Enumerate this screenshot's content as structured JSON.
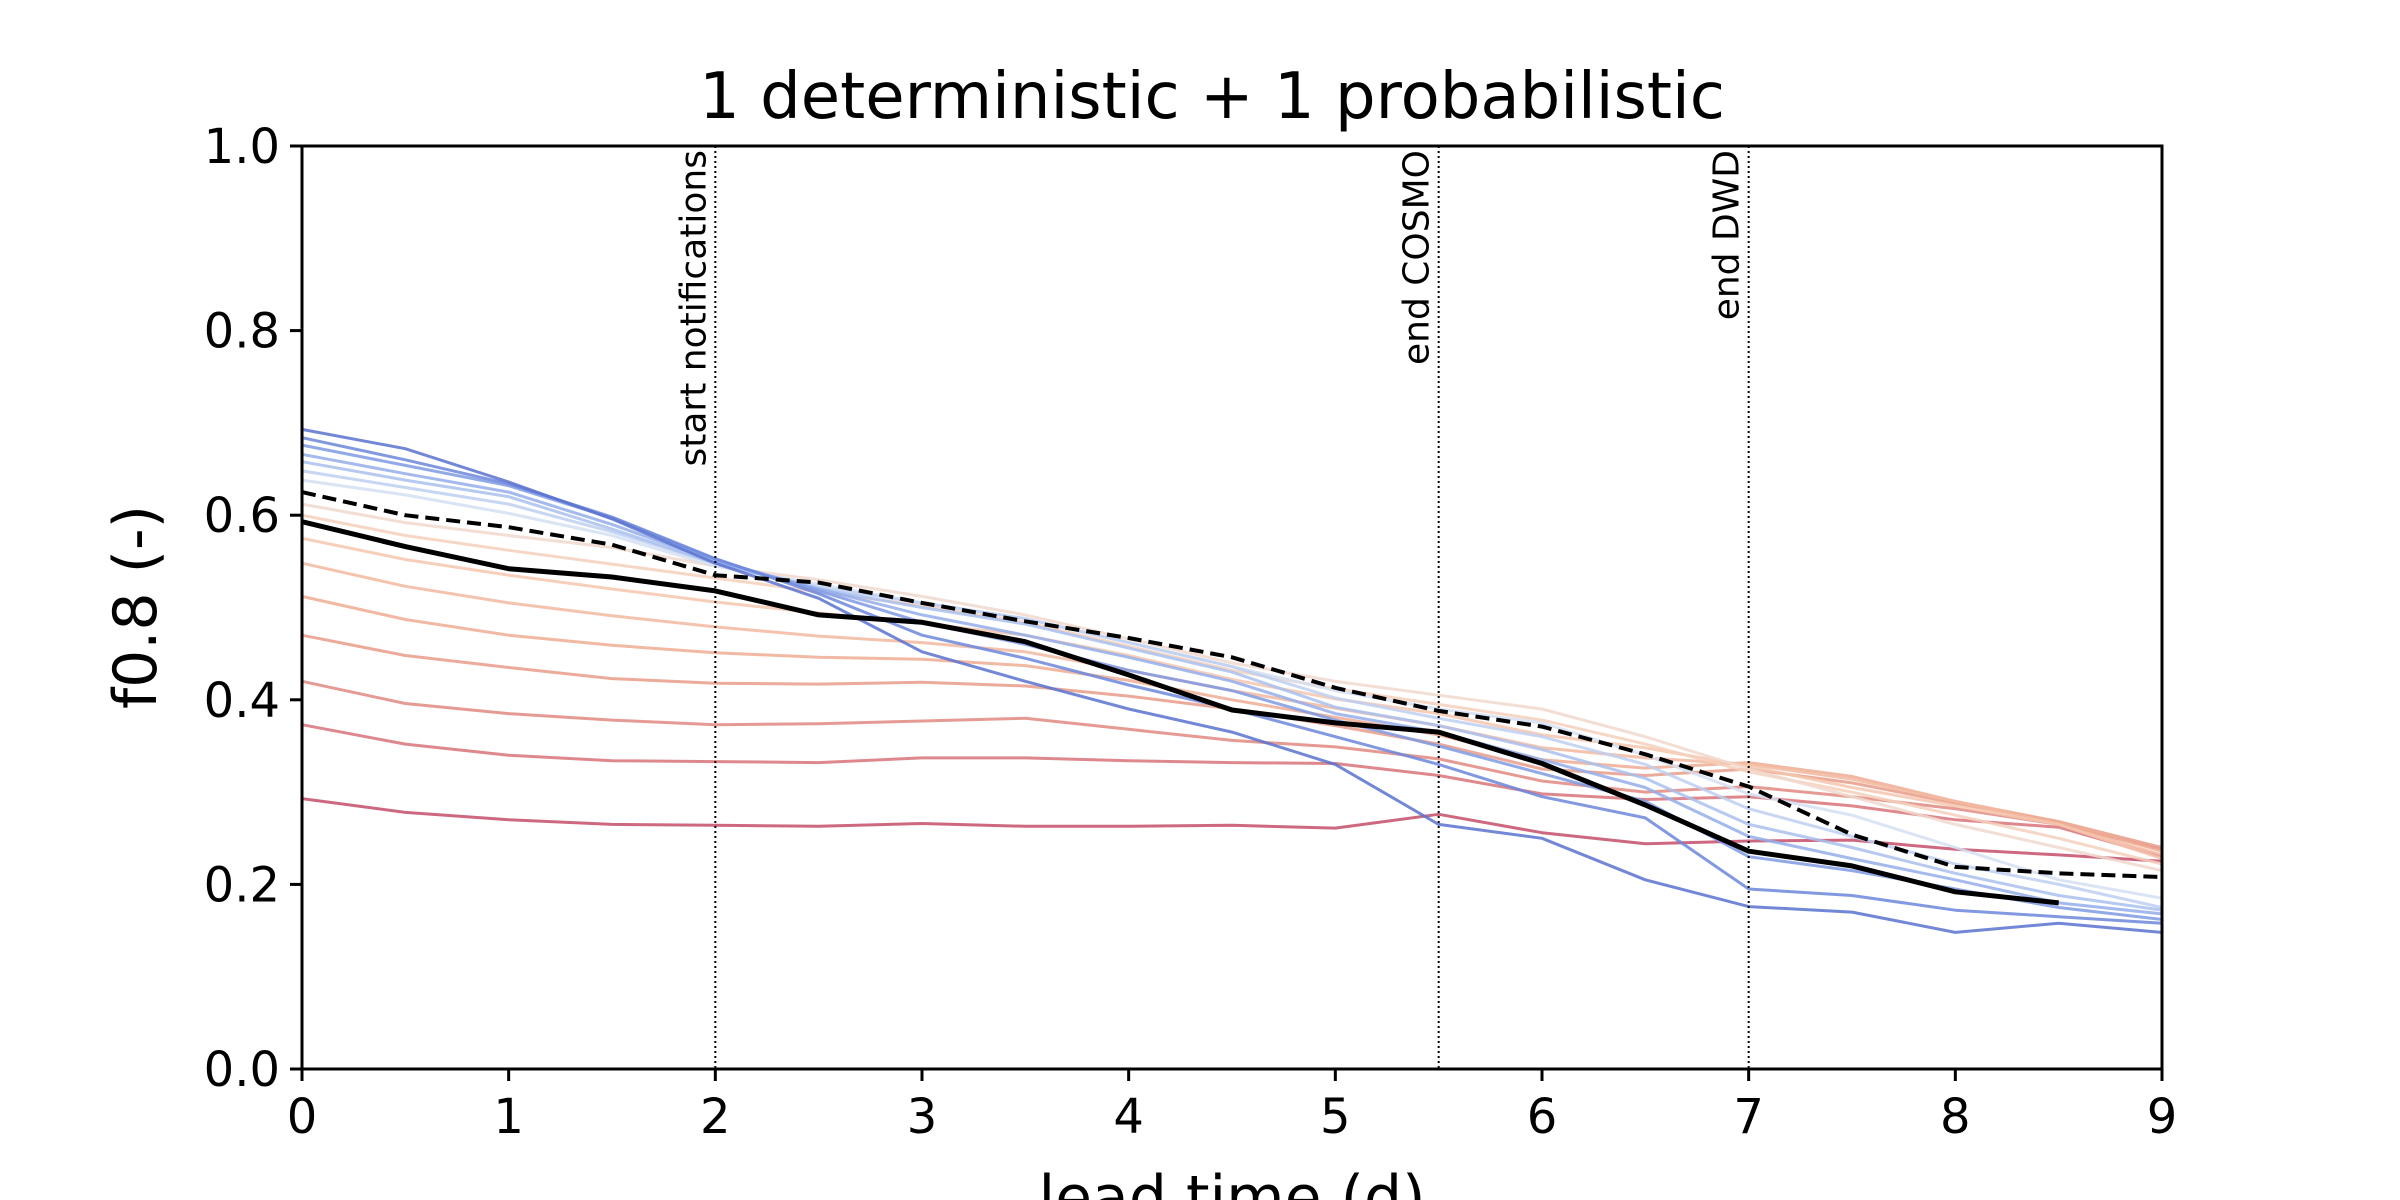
{
  "chart_data": {
    "type": "line",
    "title": "1 deterministic + 1 probabilistic",
    "xlabel": "lead time (d)",
    "ylabel": "f0.8 (-)",
    "xlim": [
      0,
      9
    ],
    "ylim": [
      0,
      1
    ],
    "x_ticks": [
      "0",
      "1",
      "2",
      "3",
      "4",
      "5",
      "6",
      "7",
      "8",
      "9"
    ],
    "y_ticks": [
      "0.0",
      "0.2",
      "0.4",
      "0.6",
      "0.8",
      "1.0"
    ],
    "x_tick_values": [
      0,
      1,
      2,
      3,
      4,
      5,
      6,
      7,
      8,
      9
    ],
    "y_tick_values": [
      0,
      0.2,
      0.4,
      0.6,
      0.8,
      1.0
    ],
    "grid": false,
    "vlines": [
      {
        "x": 2,
        "label": "start notifications"
      },
      {
        "x": 5.5,
        "label": "end COSMO"
      },
      {
        "x": 7,
        "label": "end DWD"
      }
    ],
    "x": [
      0,
      0.5,
      1,
      1.5,
      2,
      2.5,
      3,
      3.5,
      4,
      4.5,
      5,
      5.5,
      6,
      6.5,
      7,
      7.5,
      8,
      8.5,
      9
    ],
    "series": [
      {
        "color": "#c44e6a",
        "style": "solid",
        "values": [
          0.293,
          0.278,
          0.27,
          0.265,
          0.264,
          0.263,
          0.266,
          0.263,
          0.263,
          0.264,
          0.261,
          0.276,
          0.256,
          0.244,
          0.247,
          0.248,
          0.238,
          0.232,
          0.225
        ]
      },
      {
        "color": "#d8737a",
        "style": "solid",
        "values": [
          0.373,
          0.352,
          0.34,
          0.334,
          0.333,
          0.332,
          0.337,
          0.337,
          0.334,
          0.332,
          0.331,
          0.318,
          0.298,
          0.292,
          0.295,
          0.285,
          0.27,
          0.262,
          0.23
        ]
      },
      {
        "color": "#e08a80",
        "style": "solid",
        "values": [
          0.42,
          0.396,
          0.385,
          0.378,
          0.373,
          0.374,
          0.377,
          0.38,
          0.368,
          0.356,
          0.349,
          0.336,
          0.312,
          0.3,
          0.306,
          0.295,
          0.282,
          0.265,
          0.238
        ]
      },
      {
        "color": "#e99c88",
        "style": "solid",
        "values": [
          0.47,
          0.448,
          0.435,
          0.423,
          0.418,
          0.417,
          0.419,
          0.415,
          0.404,
          0.39,
          0.372,
          0.352,
          0.325,
          0.318,
          0.325,
          0.31,
          0.288,
          0.268,
          0.24
        ]
      },
      {
        "color": "#eeab93",
        "style": "solid",
        "values": [
          0.512,
          0.487,
          0.47,
          0.459,
          0.451,
          0.446,
          0.444,
          0.437,
          0.421,
          0.4,
          0.381,
          0.362,
          0.335,
          0.326,
          0.332,
          0.317,
          0.29,
          0.268,
          0.236
        ]
      },
      {
        "color": "#f2b9a0",
        "style": "solid",
        "values": [
          0.548,
          0.523,
          0.505,
          0.491,
          0.479,
          0.469,
          0.462,
          0.452,
          0.432,
          0.41,
          0.391,
          0.372,
          0.348,
          0.337,
          0.33,
          0.314,
          0.29,
          0.265,
          0.232
        ]
      },
      {
        "color": "#f4c5ad",
        "style": "solid",
        "values": [
          0.575,
          0.552,
          0.535,
          0.52,
          0.506,
          0.494,
          0.483,
          0.47,
          0.448,
          0.422,
          0.401,
          0.385,
          0.362,
          0.348,
          0.328,
          0.305,
          0.285,
          0.265,
          0.228
        ]
      },
      {
        "color": "#f5d0bc",
        "style": "solid",
        "values": [
          0.6,
          0.578,
          0.562,
          0.547,
          0.532,
          0.517,
          0.502,
          0.484,
          0.458,
          0.432,
          0.412,
          0.395,
          0.378,
          0.352,
          0.322,
          0.3,
          0.275,
          0.25,
          0.222
        ]
      },
      {
        "color": "#f0d8cc",
        "style": "solid",
        "values": [
          0.612,
          0.592,
          0.578,
          0.565,
          0.545,
          0.53,
          0.512,
          0.492,
          0.466,
          0.44,
          0.42,
          0.405,
          0.39,
          0.36,
          0.325,
          0.295,
          0.265,
          0.24,
          0.215
        ]
      },
      {
        "color": "#d3dff2",
        "style": "solid",
        "values": [
          0.638,
          0.622,
          0.602,
          0.578,
          0.545,
          0.525,
          0.505,
          0.488,
          0.462,
          0.436,
          0.41,
          0.39,
          0.375,
          0.34,
          0.298,
          0.275,
          0.24,
          0.205,
          0.185
        ]
      },
      {
        "color": "#bccff1",
        "style": "solid",
        "values": [
          0.648,
          0.63,
          0.612,
          0.582,
          0.548,
          0.522,
          0.505,
          0.488,
          0.462,
          0.436,
          0.402,
          0.38,
          0.36,
          0.33,
          0.282,
          0.252,
          0.222,
          0.2,
          0.175
        ]
      },
      {
        "color": "#a8bfef",
        "style": "solid",
        "values": [
          0.658,
          0.638,
          0.62,
          0.585,
          0.548,
          0.52,
          0.5,
          0.482,
          0.456,
          0.43,
          0.392,
          0.372,
          0.346,
          0.315,
          0.265,
          0.24,
          0.212,
          0.188,
          0.172
        ]
      },
      {
        "color": "#94aeeb",
        "style": "solid",
        "values": [
          0.666,
          0.645,
          0.625,
          0.59,
          0.55,
          0.52,
          0.492,
          0.47,
          0.446,
          0.42,
          0.385,
          0.365,
          0.335,
          0.305,
          0.252,
          0.228,
          0.205,
          0.18,
          0.168
        ]
      },
      {
        "color": "#7f9ae4",
        "style": "solid",
        "values": [
          0.676,
          0.654,
          0.632,
          0.597,
          0.552,
          0.518,
          0.484,
          0.46,
          0.432,
          0.41,
          0.378,
          0.35,
          0.32,
          0.29,
          0.23,
          0.215,
          0.195,
          0.175,
          0.162
        ]
      },
      {
        "color": "#6c86db",
        "style": "solid",
        "values": [
          0.684,
          0.66,
          0.634,
          0.598,
          0.553,
          0.515,
          0.47,
          0.445,
          0.416,
          0.39,
          0.36,
          0.33,
          0.295,
          0.272,
          0.195,
          0.188,
          0.172,
          0.165,
          0.158
        ]
      },
      {
        "color": "#5b72d0",
        "style": "solid",
        "values": [
          0.693,
          0.672,
          0.636,
          0.596,
          0.548,
          0.51,
          0.452,
          0.42,
          0.39,
          0.365,
          0.33,
          0.265,
          0.25,
          0.205,
          0.176,
          0.17,
          0.148,
          0.158,
          0.148
        ]
      },
      {
        "color": "#000000",
        "style": "solid",
        "width": 5,
        "values": [
          0.593,
          0.566,
          0.542,
          0.533,
          0.518,
          0.492,
          0.484,
          0.463,
          0.427,
          0.389,
          0.375,
          0.365,
          0.331,
          0.286,
          0.236,
          0.22,
          0.192,
          0.18,
          null
        ]
      },
      {
        "color": "#000000",
        "style": "dashed",
        "width": 4,
        "values": [
          0.625,
          0.6,
          0.587,
          0.568,
          0.535,
          0.527,
          0.505,
          0.485,
          0.467,
          0.446,
          0.413,
          0.388,
          0.371,
          0.341,
          0.306,
          0.254,
          0.219,
          0.212,
          0.208
        ]
      }
    ]
  }
}
